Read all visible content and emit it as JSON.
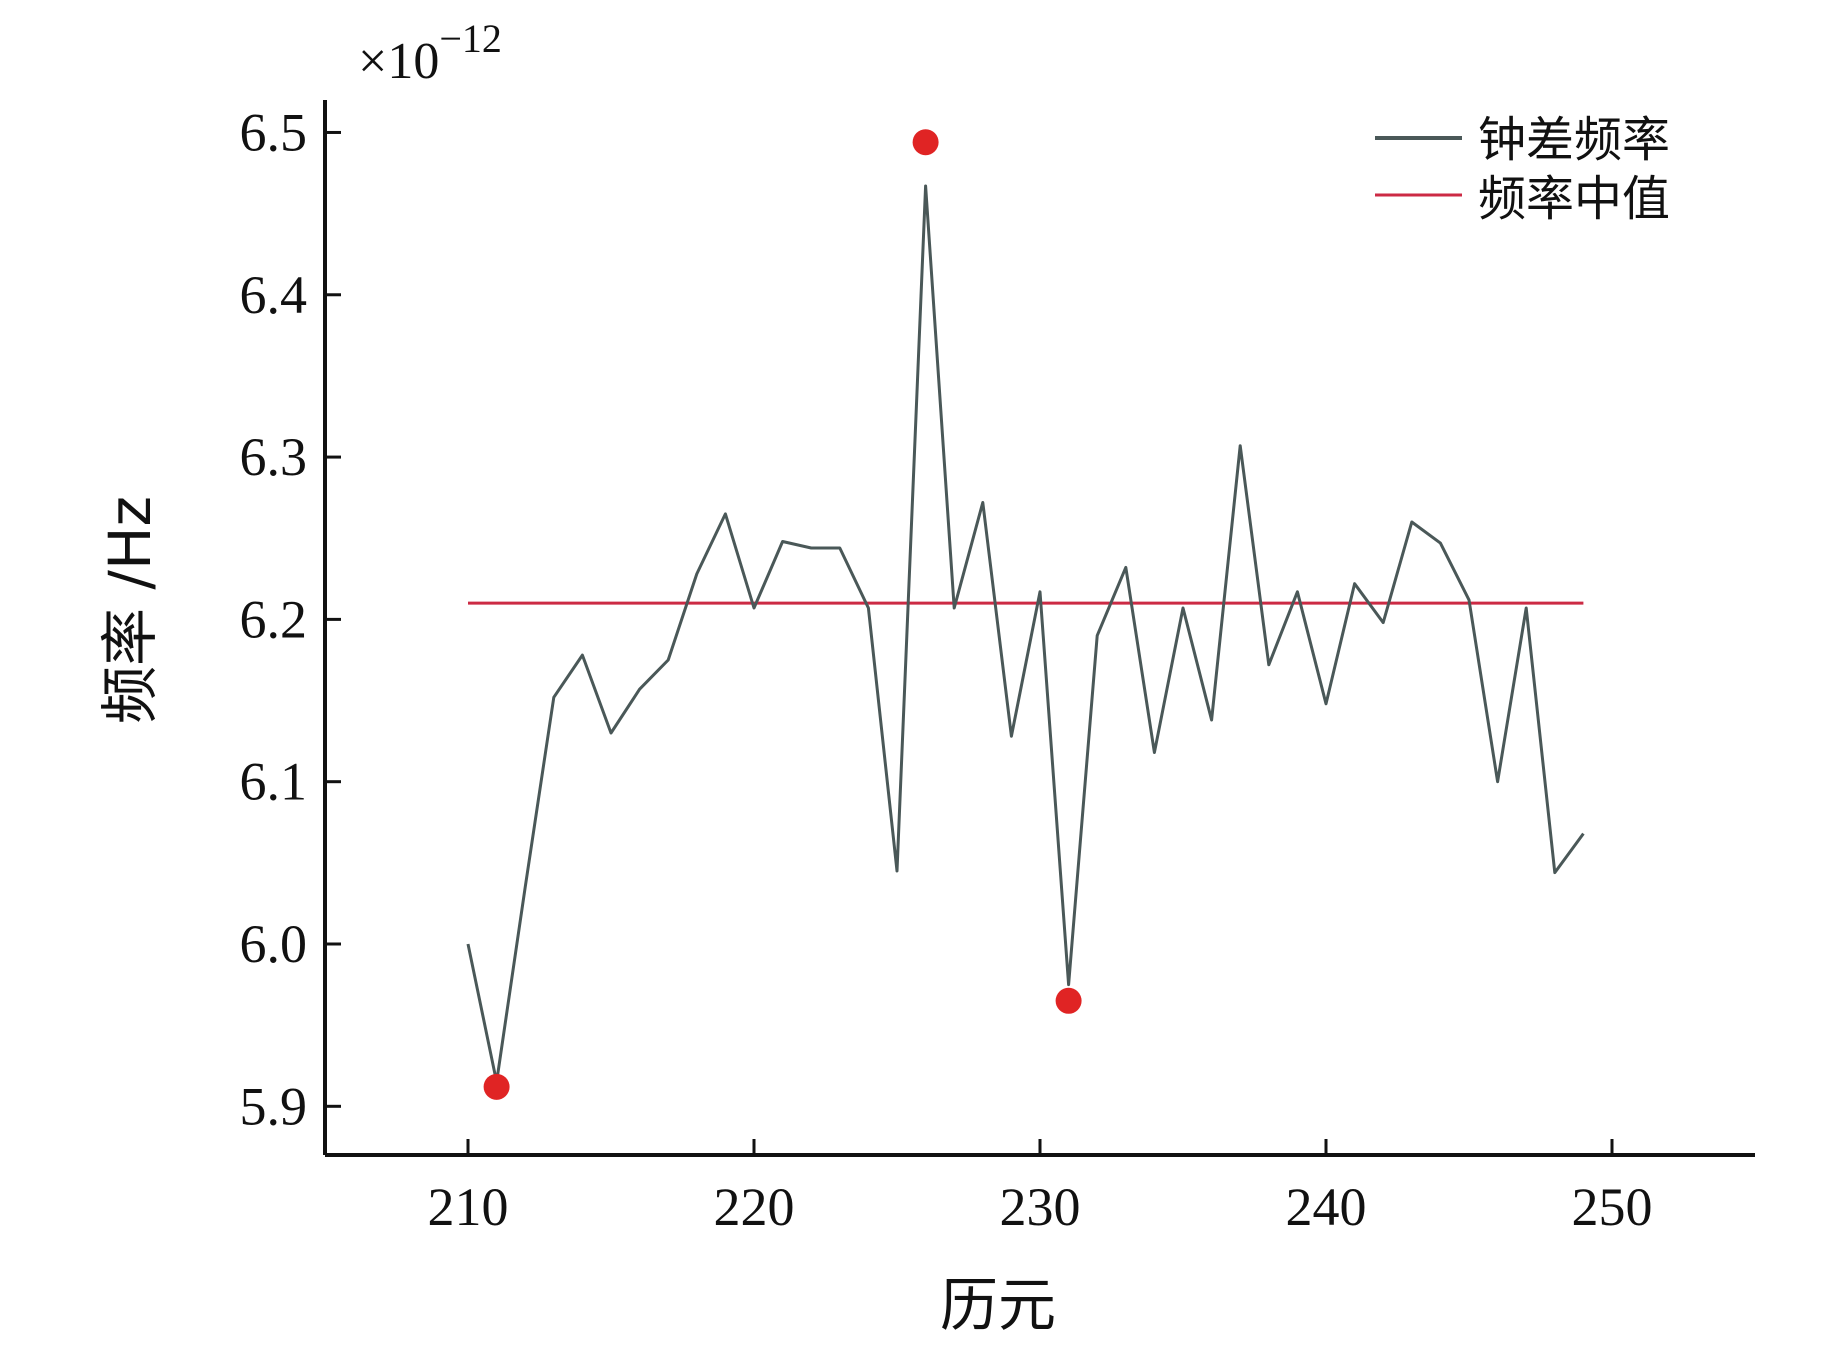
{
  "chart_data": {
    "type": "line",
    "title": "",
    "xlabel": "历元",
    "ylabel": "频率 /Hz",
    "y_multiplier": "×10",
    "y_multiplier_exp": "−12",
    "xlim": [
      205,
      255
    ],
    "ylim": [
      5.87,
      6.52
    ],
    "x_ticks": [
      210,
      220,
      230,
      240,
      250
    ],
    "x_tick_labels": [
      "210",
      "220",
      "230",
      "240",
      "250"
    ],
    "y_ticks": [
      5.9,
      6.0,
      6.1,
      6.2,
      6.3,
      6.4,
      6.5
    ],
    "y_tick_labels": [
      "5.9",
      "6.0",
      "6.1",
      "6.2",
      "6.3",
      "6.4",
      "6.5"
    ],
    "grid": false,
    "legend_position": "top-right",
    "series": [
      {
        "name": "钟差频率",
        "color": "#4a5858",
        "x": [
          210,
          211,
          212,
          213,
          214,
          215,
          216,
          217,
          218,
          219,
          220,
          221,
          222,
          223,
          224,
          225,
          226,
          227,
          228,
          229,
          230,
          231,
          232,
          233,
          234,
          235,
          236,
          237,
          238,
          239,
          240,
          241,
          242,
          243,
          244,
          245,
          246,
          247,
          248,
          249
        ],
        "y": [
          6.0,
          5.915,
          6.035,
          6.152,
          6.178,
          6.13,
          6.157,
          6.175,
          6.228,
          6.265,
          6.207,
          6.248,
          6.244,
          6.244,
          6.207,
          6.045,
          6.467,
          6.207,
          6.272,
          6.128,
          6.217,
          5.975,
          6.19,
          6.232,
          6.118,
          6.207,
          6.138,
          6.307,
          6.172,
          6.217,
          6.148,
          6.222,
          6.198,
          6.26,
          6.247,
          6.212,
          6.1,
          6.207,
          6.044,
          6.068
        ]
      },
      {
        "name": "频率中值",
        "color": "#cc2a44",
        "x": [
          210,
          249
        ],
        "y": [
          6.21,
          6.21
        ]
      }
    ],
    "outliers": {
      "color": "#e02424",
      "x": [
        211,
        226,
        231
      ],
      "y": [
        5.912,
        6.494,
        5.965
      ]
    }
  }
}
